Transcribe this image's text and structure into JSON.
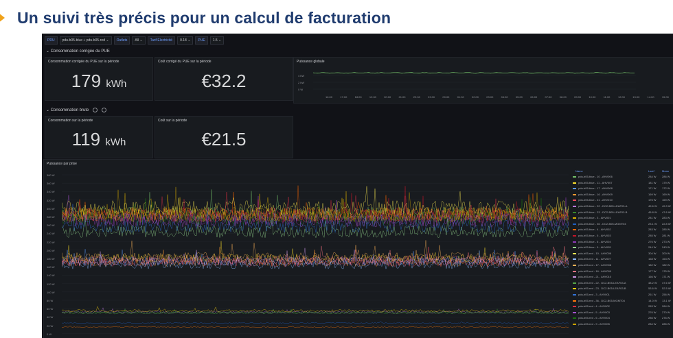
{
  "slide": {
    "title": "Un suivi très précis pour un calcul de facturation",
    "accent": "#f0a21a",
    "title_color": "#1f3b6e"
  },
  "topbar": {
    "vars": [
      {
        "label": "PDU",
        "value": "pdu-b05-blue + pdu-b05-red"
      },
      {
        "label": "Outlets",
        "value": "All"
      },
      {
        "label": "Tarif Electricité",
        "value": "0.18"
      },
      {
        "label": "PUE",
        "value": "1.5"
      }
    ]
  },
  "rows": {
    "pue": "Consommation corrigée du PUE",
    "brute": "Consommation brute"
  },
  "stats": {
    "pue_conso": {
      "title": "Consommation corrigée du PUE sur la période",
      "value": "179",
      "unit": "kWh"
    },
    "pue_cost": {
      "title": "Coût corrigé du PUE sur la période",
      "value": "€32.2"
    },
    "raw_conso": {
      "title": "Consommation sur la période",
      "value": "119",
      "unit": "kWh"
    },
    "raw_cost": {
      "title": "Coût sur la période",
      "value": "€21.5"
    }
  },
  "global_power": {
    "title": "Puissance globale",
    "y_ticks": [
      "4 kW",
      "2 kW",
      "0 W"
    ],
    "x_ticks": [
      "16:00",
      "17:00",
      "18:00",
      "19:00",
      "20:00",
      "21:00",
      "22:00",
      "23:00",
      "00:00",
      "01:00",
      "02:00",
      "03:00",
      "04:00",
      "05:00",
      "06:00",
      "07:00",
      "08:00",
      "09:00",
      "10:00",
      "11:00",
      "12:00",
      "13:00",
      "14:00",
      "15:00"
    ]
  },
  "per_outlet": {
    "title": "Puissance par prise",
    "y_ticks": [
      "380 W",
      "360 W",
      "340 W",
      "320 W",
      "300 W",
      "280 W",
      "260 W",
      "240 W",
      "220 W",
      "200 W",
      "180 W",
      "160 W",
      "140 W",
      "120 W",
      "100 W",
      "80 W",
      "60 W",
      "40 W",
      "20 W",
      "0 W"
    ],
    "legend_header": {
      "name": "Name",
      "last": "Last *",
      "mean": "Mean"
    },
    "legend": [
      {
        "name": "pdu-b05-blue - 10 - AHV006",
        "last": "284 W",
        "mean": "286 W",
        "color": "#73bf69"
      },
      {
        "name": "pdu-b05-blue - 11 - AHV007",
        "last": "181 W",
        "mean": "179 W",
        "color": "#fade2a"
      },
      {
        "name": "pdu-b05-blue - 17 - AHV008",
        "last": "171 W",
        "mean": "172 W",
        "color": "#5794f2"
      },
      {
        "name": "pdu-b05-blue - 16 - AHV009",
        "last": "169 W",
        "mean": "169 W",
        "color": "#ff9830"
      },
      {
        "name": "pdu-b05-blue - 21 - AHV010",
        "last": "176 W",
        "mean": "169 W",
        "color": "#f2495c"
      },
      {
        "name": "pdu-b05-blue - 22 - DC2-B05-LEAF03-A",
        "last": "49.6 W",
        "mean": "49.3 W",
        "color": "#b877d9"
      },
      {
        "name": "pdu-b05-blue - 23 - DC2-B05-LEAF03-B",
        "last": "45.8 W",
        "mean": "47.6 W",
        "color": "#37872d"
      },
      {
        "name": "pdu-b05-blue - 3 - AHV001",
        "last": "281 W",
        "mean": "283 W",
        "color": "#e0b400"
      },
      {
        "name": "pdu-b05-blue - 36 - DC2-B05-MGMT04",
        "last": "23.1 W",
        "mean": "22.8 W",
        "color": "#1f60c4"
      },
      {
        "name": "pdu-b05-blue - 4 - AHV002",
        "last": "283 W",
        "mean": "285 W",
        "color": "#fa6400"
      },
      {
        "name": "pdu-b05-blue - 5 - AHV003",
        "last": "285 W",
        "mean": "281 W",
        "color": "#c4162a"
      },
      {
        "name": "pdu-b05-blue - 6 - AHV004",
        "last": "276 W",
        "mean": "273 W",
        "color": "#8f3bb8"
      },
      {
        "name": "pdu-b05-blue - 9 - AHV005",
        "last": "244 W",
        "mean": "243 W",
        "color": "#96d98d"
      },
      {
        "name": "pdu-b05-red - 10 - AHV006",
        "last": "304 W",
        "mean": "300 W",
        "color": "#ffee52"
      },
      {
        "name": "pdu-b05-red - 11 - AHV007",
        "last": "168 W",
        "mean": "163 W",
        "color": "#8ab8ff"
      },
      {
        "name": "pdu-b05-red - 17 - AHV008",
        "last": "182 W",
        "mean": "182 W",
        "color": "#ffb357"
      },
      {
        "name": "pdu-b05-red - 16 - AHV009",
        "last": "177 W",
        "mean": "175 W",
        "color": "#ff7383"
      },
      {
        "name": "pdu-b05-red - 21 - AHV010",
        "last": "166 W",
        "mean": "171 W",
        "color": "#ca95e5"
      },
      {
        "name": "pdu-b05-red - 22 - DC2-B05-LEAF03-A",
        "last": "48.2 W",
        "mean": "47.6 W",
        "color": "#56a64b"
      },
      {
        "name": "pdu-b05-red - 23 - DC2-B05-LEAF03-B",
        "last": "53.6 W",
        "mean": "52.5 W",
        "color": "#f2cc0c"
      },
      {
        "name": "pdu-b05-red - 3 - AHV001",
        "last": "261 W",
        "mean": "256 W",
        "color": "#3274d9"
      },
      {
        "name": "pdu-b05-red - 36 - DC2-B05-MGMT04",
        "last": "14.0 W",
        "mean": "13.1 W",
        "color": "#ff780a"
      },
      {
        "name": "pdu-b05-red - 4 - AHV002",
        "last": "283 W",
        "mean": "284 W",
        "color": "#e02f44"
      },
      {
        "name": "pdu-b05-red - 5 - AHV003",
        "last": "276 W",
        "mean": "270 W",
        "color": "#a352cc"
      },
      {
        "name": "pdu-b05-red - 6 - AHV004",
        "last": "286 W",
        "mean": "276 W",
        "color": "#19730e"
      },
      {
        "name": "pdu-b05-red - 9 - AHV005",
        "last": "284 W",
        "mean": "285 W",
        "color": "#cca300"
      }
    ]
  }
}
